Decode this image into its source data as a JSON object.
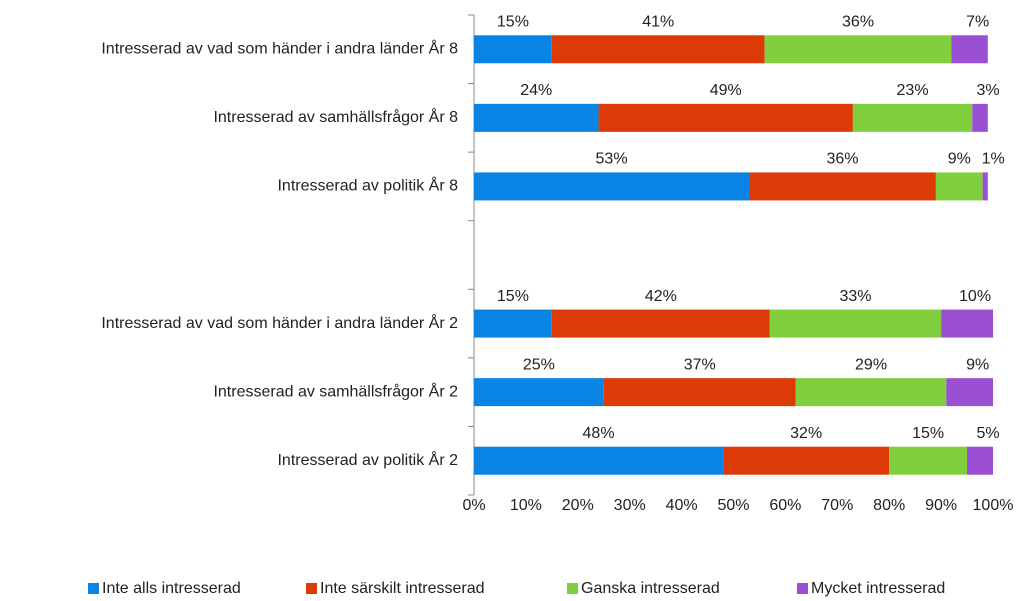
{
  "chart_data": {
    "type": "stacked-barh",
    "categories": [
      "Intresserad av vad som händer i andra länder År 8",
      "Intresserad av samhällsfrågor År 8",
      "Intresserad av politik År 8",
      null,
      "Intresserad av vad som händer i andra länder År 2",
      "Intresserad av samhällsfrågor År 2",
      "Intresserad av politik År 2"
    ],
    "series": [
      {
        "name": "Inte alls intresserad",
        "color": "#0a84e4",
        "values": [
          15,
          24,
          53,
          null,
          15,
          25,
          48
        ],
        "value_labels": [
          "15%",
          "24%",
          "53%",
          null,
          "15%",
          "25%",
          "48%"
        ]
      },
      {
        "name": "Inte särskilt intresserad",
        "color": "#dc3a06",
        "values": [
          41,
          49,
          36,
          null,
          42,
          37,
          32
        ],
        "value_labels": [
          "41%",
          "49%",
          "36%",
          null,
          "42%",
          "37%",
          "32%"
        ]
      },
      {
        "name": "Ganska intresserad",
        "color": "#80d03e",
        "values": [
          36,
          23,
          9,
          null,
          33,
          29,
          15
        ],
        "value_labels": [
          "36%",
          "23%",
          "9%",
          null,
          "33%",
          "29%",
          "15%"
        ]
      },
      {
        "name": "Mycket intresserad",
        "color": "#9b4fd2",
        "values": [
          7,
          3,
          1,
          null,
          10,
          9,
          5
        ],
        "value_labels": [
          "7%",
          "3%",
          "1%",
          null,
          "10%",
          "9%",
          "5%"
        ]
      }
    ],
    "xlim": [
      0,
      100
    ],
    "xticks": [
      {
        "value": 0,
        "label": "0%"
      },
      {
        "value": 10,
        "label": "10%"
      },
      {
        "value": 20,
        "label": "20%"
      },
      {
        "value": 30,
        "label": "30%"
      },
      {
        "value": 40,
        "label": "40%"
      },
      {
        "value": 50,
        "label": "50%"
      },
      {
        "value": 60,
        "label": "60%"
      },
      {
        "value": 70,
        "label": "70%"
      },
      {
        "value": 80,
        "label": "80%"
      },
      {
        "value": 90,
        "label": "90%"
      },
      {
        "value": 100,
        "label": "100%"
      }
    ],
    "legend": "bottom"
  }
}
